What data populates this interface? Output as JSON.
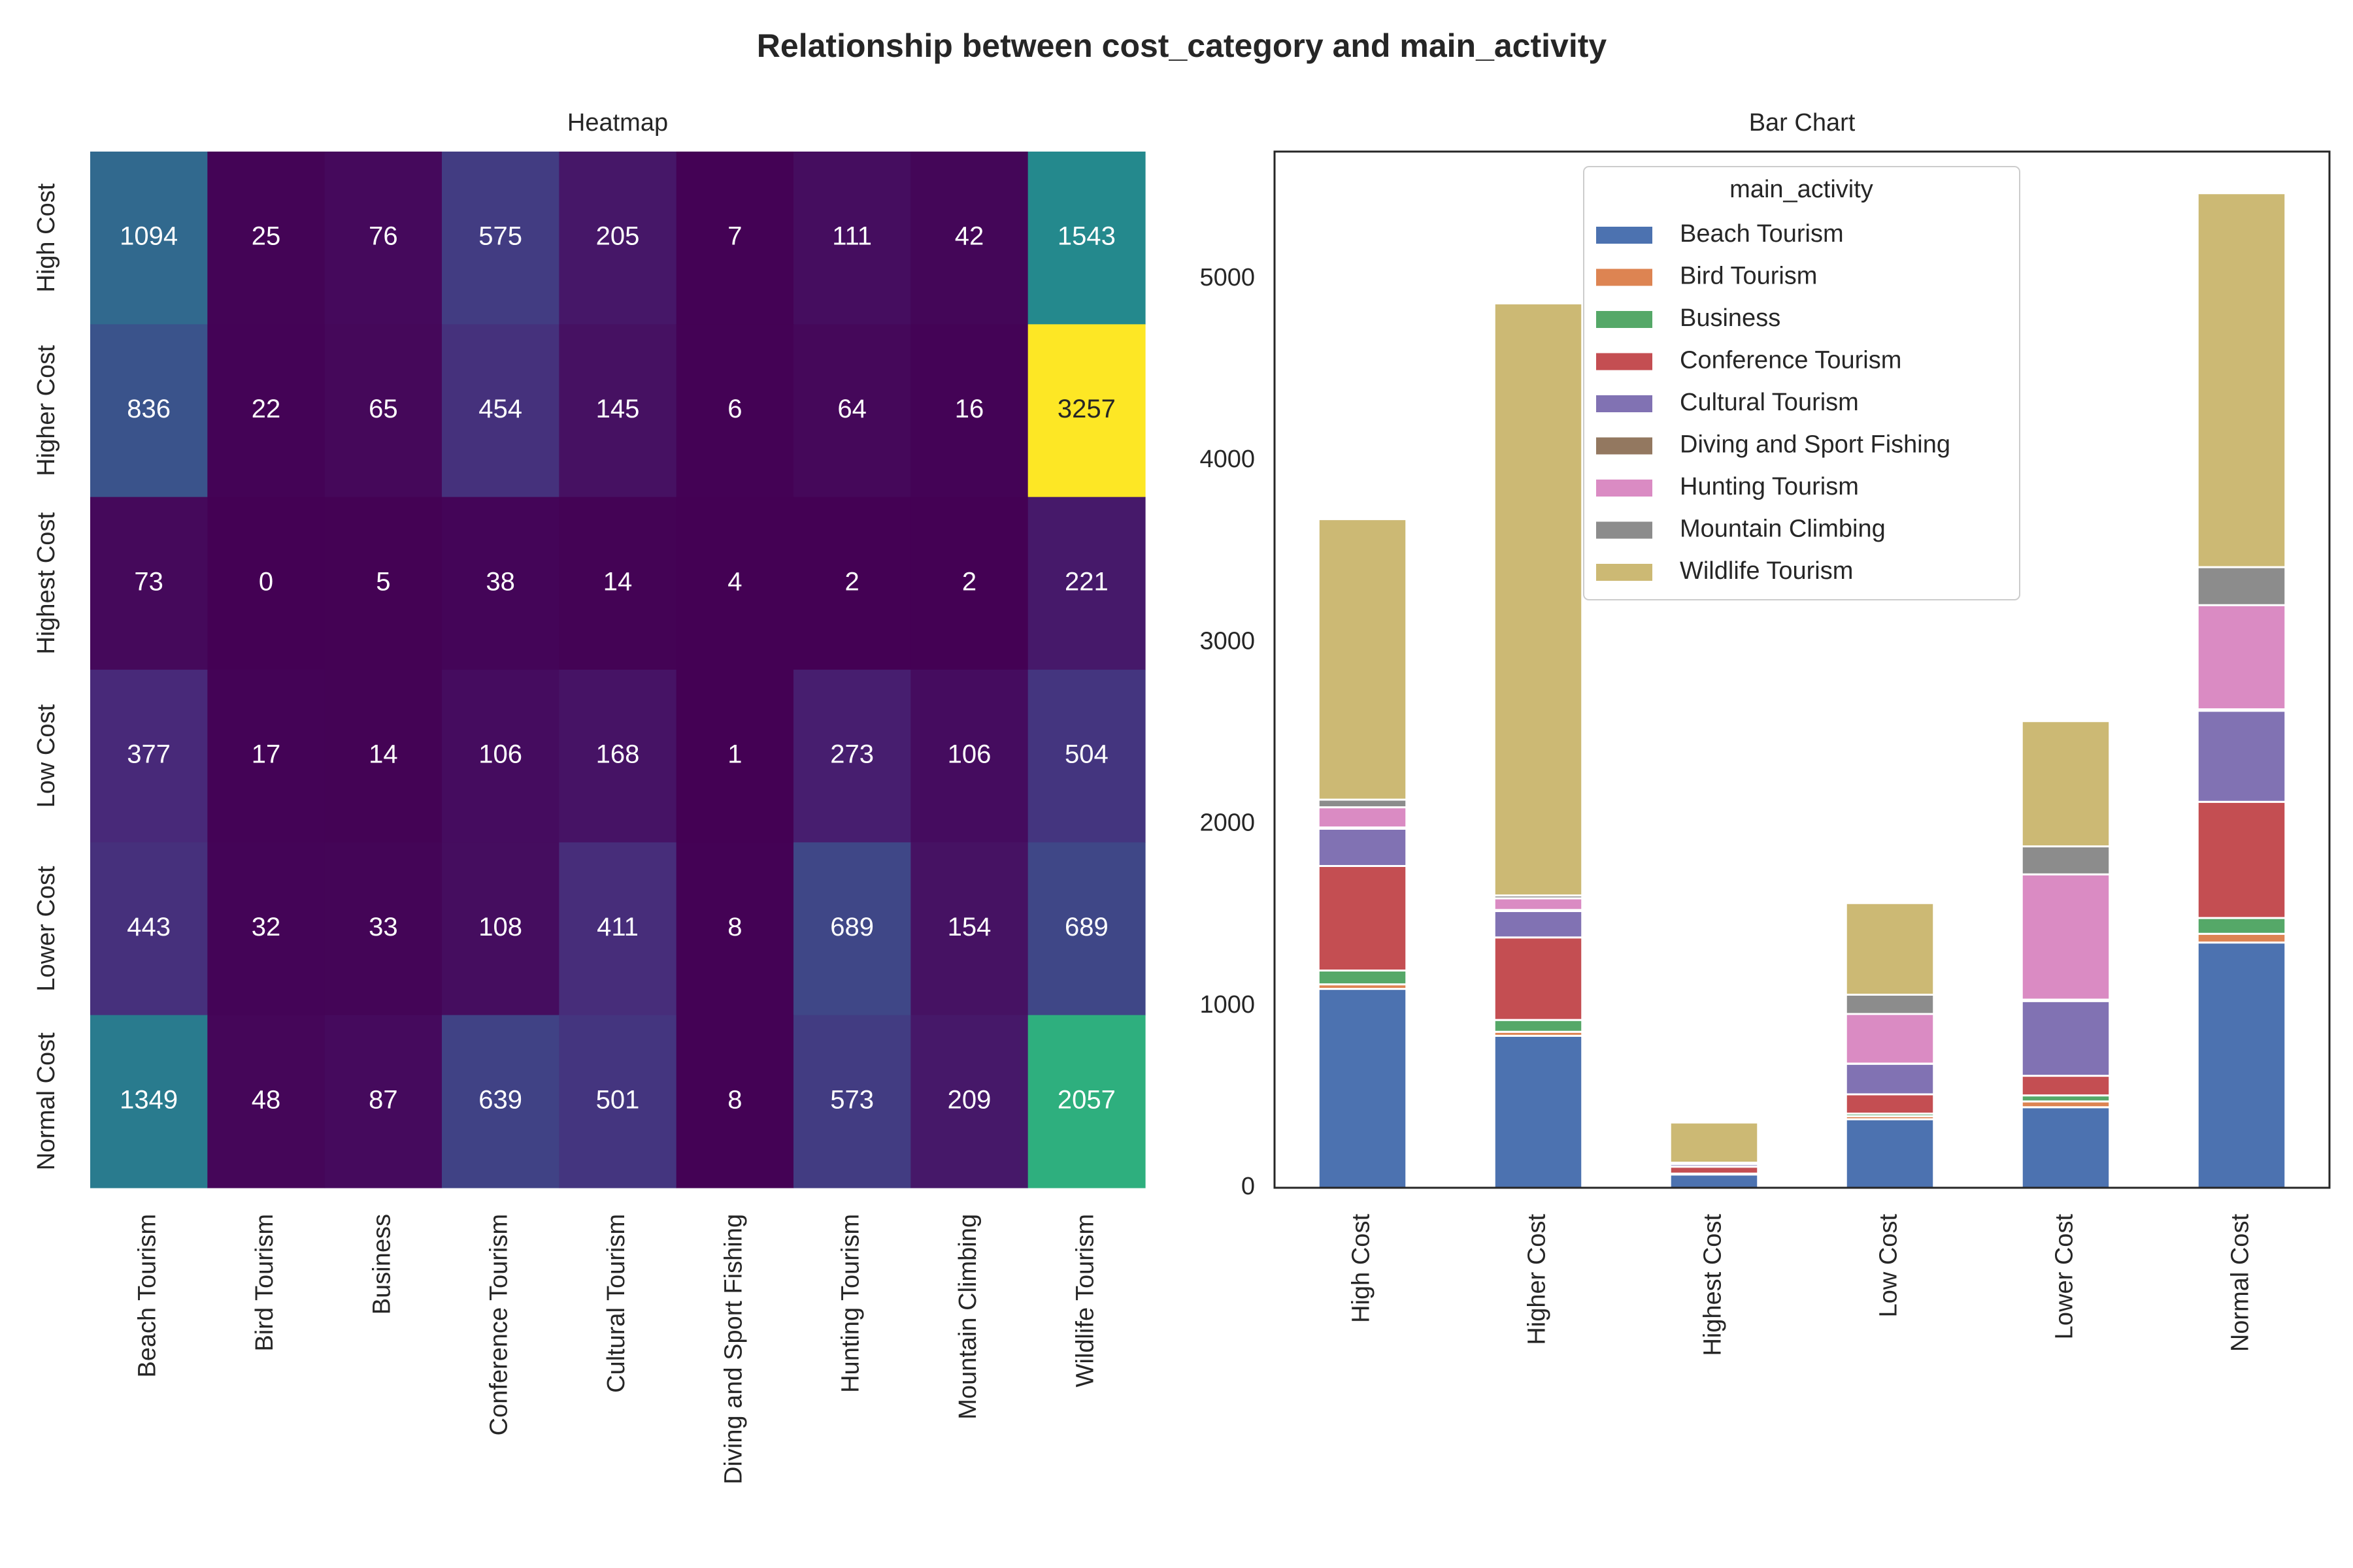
{
  "title": "Relationship between cost_category and main_activity",
  "chart_data": [
    {
      "type": "heatmap",
      "title": "Heatmap",
      "rows": [
        "High Cost",
        "Higher Cost",
        "Highest Cost",
        "Low Cost",
        "Lower Cost",
        "Normal Cost"
      ],
      "columns": [
        "Beach Tourism",
        "Bird Tourism",
        "Business",
        "Conference Tourism",
        "Cultural Tourism",
        "Diving and Sport Fishing",
        "Hunting Tourism",
        "Mountain Climbing",
        "Wildlife Tourism"
      ],
      "values": [
        [
          1094,
          25,
          76,
          575,
          205,
          7,
          111,
          42,
          1543
        ],
        [
          836,
          22,
          65,
          454,
          145,
          6,
          64,
          16,
          3257
        ],
        [
          73,
          0,
          5,
          38,
          14,
          4,
          2,
          2,
          221
        ],
        [
          377,
          17,
          14,
          106,
          168,
          1,
          273,
          106,
          504
        ],
        [
          443,
          32,
          33,
          108,
          411,
          8,
          689,
          154,
          689
        ],
        [
          1349,
          48,
          87,
          639,
          501,
          8,
          573,
          209,
          2057
        ]
      ],
      "colormap": "viridis",
      "value_range": [
        0,
        3257
      ]
    },
    {
      "type": "bar",
      "stacked": true,
      "title": "Bar Chart",
      "categories": [
        "High Cost",
        "Higher Cost",
        "Highest Cost",
        "Low Cost",
        "Lower Cost",
        "Normal Cost"
      ],
      "legend_title": "main_activity",
      "legend_position": "top-center",
      "ylim": [
        0,
        5700
      ],
      "yticks": [
        0,
        1000,
        2000,
        3000,
        4000,
        5000
      ],
      "series": [
        {
          "name": "Beach Tourism",
          "color": "#4c72b0",
          "values": [
            1094,
            836,
            73,
            377,
            443,
            1349
          ]
        },
        {
          "name": "Bird Tourism",
          "color": "#dd8452",
          "values": [
            25,
            22,
            0,
            17,
            32,
            48
          ]
        },
        {
          "name": "Business",
          "color": "#55a868",
          "values": [
            76,
            65,
            5,
            14,
            33,
            87
          ]
        },
        {
          "name": "Conference Tourism",
          "color": "#c44e52",
          "values": [
            575,
            454,
            38,
            106,
            108,
            639
          ]
        },
        {
          "name": "Cultural Tourism",
          "color": "#8172b3",
          "values": [
            205,
            145,
            14,
            168,
            411,
            501
          ]
        },
        {
          "name": "Diving and Sport Fishing",
          "color": "#937860",
          "values": [
            7,
            6,
            4,
            1,
            8,
            8
          ]
        },
        {
          "name": "Hunting Tourism",
          "color": "#da8bc3",
          "values": [
            111,
            64,
            2,
            273,
            689,
            573
          ]
        },
        {
          "name": "Mountain Climbing",
          "color": "#8c8c8c",
          "values": [
            42,
            16,
            2,
            106,
            154,
            209
          ]
        },
        {
          "name": "Wildlife Tourism",
          "color": "#ccb974",
          "values": [
            1543,
            3257,
            221,
            504,
            689,
            2057
          ]
        }
      ]
    }
  ]
}
